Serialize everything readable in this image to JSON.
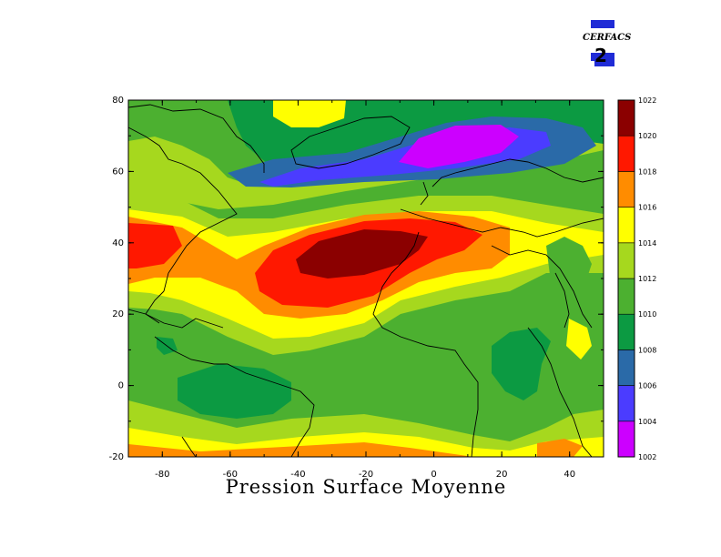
{
  "logo": {
    "text": "CERFACS",
    "colors": [
      "#1f2bd6",
      "#000000"
    ]
  },
  "title": "Pression Surface Moyenne",
  "map": {
    "lon_range": [
      -90,
      50
    ],
    "lat_range": [
      -20,
      80
    ],
    "x_ticks": [
      "-80",
      "-60",
      "-40",
      "-20",
      "0",
      "20",
      "40"
    ],
    "x_tick_values": [
      -80,
      -60,
      -40,
      -20,
      0,
      20,
      40
    ],
    "y_ticks": [
      "-20",
      "0",
      "20",
      "40",
      "60",
      "80"
    ],
    "y_tick_values": [
      -20,
      0,
      20,
      40,
      60,
      80
    ]
  },
  "colorbar": {
    "levels": [
      "1002",
      "1004",
      "1006",
      "1008",
      "1010",
      "1012",
      "1014",
      "1016",
      "1018",
      "1020",
      "1022"
    ],
    "colors": [
      "#cc00ff",
      "#4b3cff",
      "#2a6aa8",
      "#0c9a42",
      "#4cb030",
      "#a6d81e",
      "#ffff00",
      "#ff8c00",
      "#ff1800",
      "#8b0000"
    ]
  }
}
